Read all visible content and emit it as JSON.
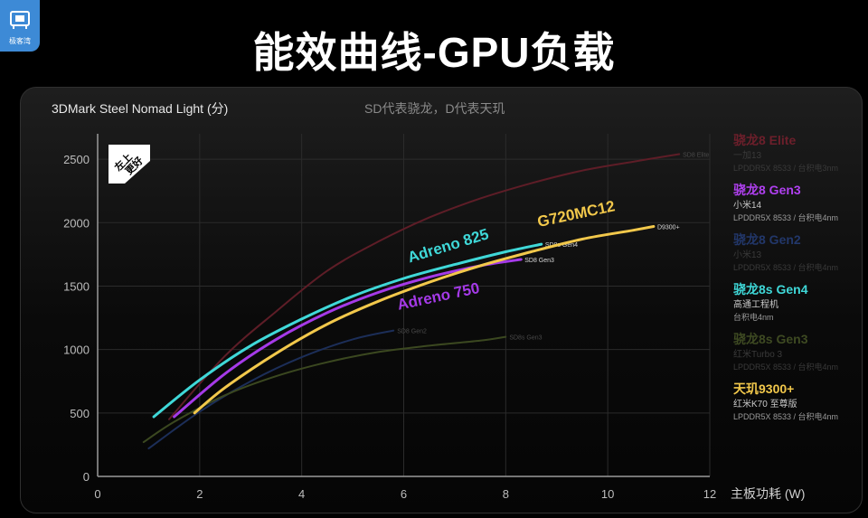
{
  "logo": {
    "text": "极客湾",
    "color": "#3d8ad6"
  },
  "page_title": "能效曲线-GPU负载",
  "chart_data": {
    "type": "line",
    "title": "3DMark Steel Nomad Light (分)",
    "subtitle": "SD代表骁龙，D代表天玑",
    "xlabel": "主板功耗 (W)",
    "ylabel": "",
    "xlim": [
      0,
      12
    ],
    "ylim": [
      0,
      2700
    ],
    "xticks": [
      0,
      2,
      4,
      6,
      8,
      10,
      12
    ],
    "yticks": [
      0,
      500,
      1000,
      1500,
      2000,
      2500
    ],
    "grid": true,
    "badge": "左上更好",
    "series": [
      {
        "name": "SD8 Elite",
        "end_label": "SD8 Elite",
        "color": "#5e1d27",
        "dim": true,
        "x": [
          1.4,
          2.5,
          3.5,
          4.5,
          5.5,
          6.5,
          7.5,
          8.5,
          9.5,
          10.5,
          11.4
        ],
        "y": [
          450,
          950,
          1300,
          1620,
          1850,
          2040,
          2190,
          2310,
          2410,
          2480,
          2540
        ]
      },
      {
        "name": "SD8 Gen3",
        "end_label": "SD8 Gen3",
        "color": "#a53ae8",
        "dim": false,
        "curve_label": "Adreno 750",
        "x": [
          1.5,
          2.5,
          3.5,
          4.5,
          5.5,
          6.5,
          7.5,
          8.3
        ],
        "y": [
          470,
          810,
          1080,
          1290,
          1450,
          1570,
          1660,
          1710
        ]
      },
      {
        "name": "SD8 Gen2",
        "end_label": "SD8 Gen2",
        "color": "#1c2e58",
        "dim": true,
        "x": [
          1.0,
          2.0,
          3.0,
          4.0,
          5.0,
          5.8
        ],
        "y": [
          220,
          510,
          750,
          940,
          1080,
          1150
        ]
      },
      {
        "name": "SD8s Gen4",
        "end_label": "SD8s Gen4",
        "color": "#3fd8d8",
        "dim": false,
        "curve_label": "Adreno 825",
        "x": [
          1.1,
          2.0,
          3.0,
          4.0,
          5.0,
          6.0,
          7.0,
          8.0,
          8.7
        ],
        "y": [
          470,
          760,
          1030,
          1240,
          1420,
          1560,
          1670,
          1770,
          1830
        ]
      },
      {
        "name": "SD8s Gen3",
        "end_label": "SD8s Gen3",
        "color": "#3b4820",
        "dim": true,
        "x": [
          0.9,
          1.5,
          2.5,
          3.5,
          4.5,
          5.5,
          6.5,
          7.5,
          8.0
        ],
        "y": [
          270,
          430,
          640,
          790,
          900,
          980,
          1030,
          1070,
          1100
        ]
      },
      {
        "name": "D9300+",
        "end_label": "D9300+",
        "color": "#f2c84b",
        "dim": false,
        "curve_label": "G720MC12",
        "x": [
          1.9,
          2.5,
          3.5,
          4.5,
          5.5,
          6.5,
          7.5,
          8.5,
          9.5,
          10.5,
          10.9
        ],
        "y": [
          500,
          700,
          970,
          1200,
          1380,
          1530,
          1660,
          1770,
          1870,
          1940,
          1970
        ]
      }
    ],
    "legend": [
      {
        "title": "骁龙8 Elite",
        "device": "一加13",
        "spec": "LPDDR5X 8533 / 台积电3nm",
        "color": "#6d1f2b",
        "dim": true
      },
      {
        "title": "骁龙8 Gen3",
        "device": "小米14",
        "spec": "LPDDR5X 8533 / 台积电4nm",
        "color": "#b040f0",
        "dim": false
      },
      {
        "title": "骁龙8 Gen2",
        "device": "小米13",
        "spec": "LPDDR5X 8533 / 台积电4nm",
        "color": "#22376a",
        "dim": true
      },
      {
        "title": "骁龙8s Gen4",
        "device": "高通工程机",
        "spec": "台积电4nm",
        "color": "#3fd8d8",
        "dim": false
      },
      {
        "title": "骁龙8s Gen3",
        "device": "红米Turbo 3",
        "spec": "LPDDR5X 8533 / 台积电4nm",
        "color": "#3e4a22",
        "dim": true
      },
      {
        "title": "天玑9300+",
        "device": "红米K70 至尊版",
        "spec": "LPDDR5X 8533 / 台积电4nm",
        "color": "#f2c84b",
        "dim": false
      }
    ]
  }
}
